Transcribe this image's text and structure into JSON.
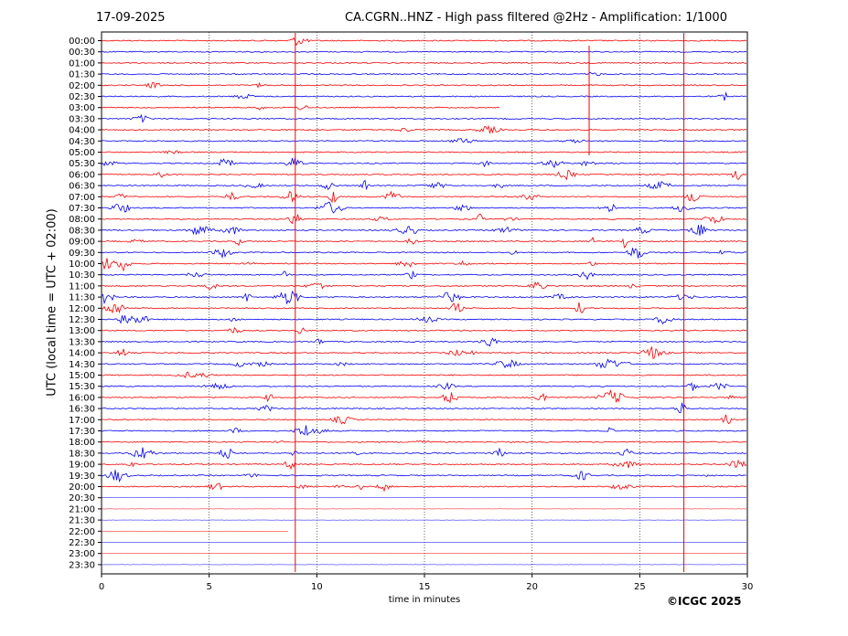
{
  "header": {
    "date": "17-09-2025",
    "title": "CA.CGRN..HNZ - High pass filtered @2Hz - Amplification: 1/1000"
  },
  "credit": "©ICGC 2025",
  "chart_data": {
    "type": "line",
    "title": "CA.CGRN..HNZ - High pass filtered @2Hz - Amplification: 1/1000",
    "xlabel": "time in minutes",
    "ylabel": "UTC (local time = UTC + 02:00)",
    "xlim": [
      0,
      30
    ],
    "x_ticks": [
      0,
      5,
      10,
      15,
      20,
      25,
      30
    ],
    "y_ticks": [
      "00:00",
      "00:30",
      "01:00",
      "01:30",
      "02:00",
      "02:30",
      "03:00",
      "03:30",
      "04:00",
      "04:30",
      "05:00",
      "05:30",
      "06:00",
      "06:30",
      "07:00",
      "07:30",
      "08:00",
      "08:30",
      "09:00",
      "09:30",
      "10:00",
      "10:30",
      "11:00",
      "11:30",
      "12:00",
      "12:30",
      "13:00",
      "13:30",
      "14:00",
      "14:30",
      "15:00",
      "15:30",
      "16:00",
      "16:30",
      "17:00",
      "17:30",
      "18:00",
      "18:30",
      "19:00",
      "19:30",
      "20:00",
      "20:30",
      "21:00",
      "21:30",
      "22:00",
      "22:30",
      "23:00",
      "23:30"
    ],
    "trace_colors": [
      "#ff0000",
      "#0000ff"
    ],
    "grid": "vertical dotted at 5-minute intervals",
    "spikes_minutes": [
      9.0,
      27.05,
      22.65
    ],
    "trace_end_minutes": {
      "03:00": 18.5,
      "21:30": 30,
      "22:00": 8.7
    }
  }
}
